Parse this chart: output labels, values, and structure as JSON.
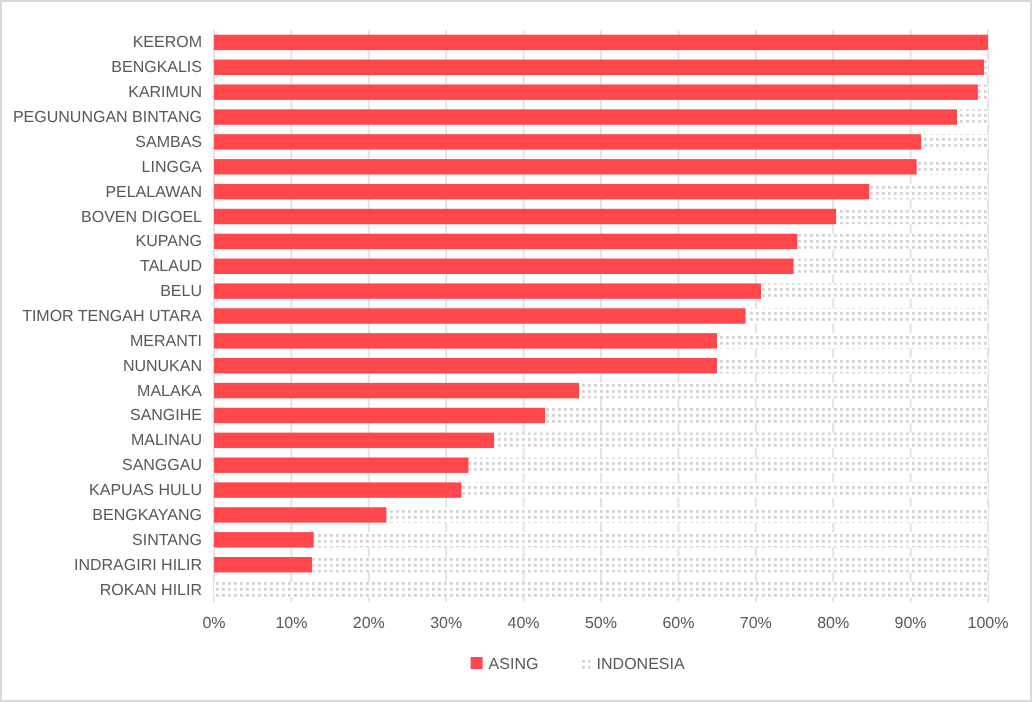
{
  "chart_data": {
    "type": "bar",
    "orientation": "horizontal",
    "stacked": true,
    "categories": [
      "KEEROM",
      "BENGKALIS",
      "KARIMUN",
      "PEGUNUNGAN BINTANG",
      "SAMBAS",
      "LINGGA",
      "PELALAWAN",
      "BOVEN DIGOEL",
      "KUPANG",
      "TALAUD",
      "BELU",
      "TIMOR TENGAH UTARA",
      "MERANTI",
      "NUNUKAN",
      "MALAKA",
      "SANGIHE",
      "MALINAU",
      "SANGGAU",
      "KAPUAS HULU",
      "BENGKAYANG",
      "SINTANG",
      "INDRAGIRI HILIR",
      "ROKAN HILIR"
    ],
    "series": [
      {
        "name": "ASING",
        "color": "#ff474c",
        "values": [
          100,
          99.5,
          98.7,
          96,
          91.4,
          90.8,
          84.7,
          80.4,
          75.4,
          74.9,
          70.7,
          68.7,
          65,
          65,
          47.2,
          42.8,
          36.2,
          32.9,
          32,
          22.3,
          12.9,
          12.7,
          0
        ]
      },
      {
        "name": "INDONESIA",
        "color": "#d4d4d4",
        "values": [
          0,
          0.5,
          1.3,
          4,
          8.6,
          9.2,
          15.3,
          19.6,
          24.6,
          25.1,
          29.3,
          31.3,
          35,
          35,
          52.8,
          57.2,
          63.8,
          67.1,
          68,
          77.7,
          87.1,
          87.3,
          100
        ]
      }
    ],
    "xlim": [
      0,
      100
    ],
    "xticks": [
      {
        "value": 0,
        "label": "0%"
      },
      {
        "value": 10,
        "label": "10%"
      },
      {
        "value": 20,
        "label": "20%"
      },
      {
        "value": 30,
        "label": "30%"
      },
      {
        "value": 40,
        "label": "40%"
      },
      {
        "value": 50,
        "label": "50%"
      },
      {
        "value": 60,
        "label": "60%"
      },
      {
        "value": 70,
        "label": "70%"
      },
      {
        "value": 80,
        "label": "80%"
      },
      {
        "value": 90,
        "label": "90%"
      },
      {
        "value": 100,
        "label": "100%"
      }
    ],
    "grid": "x",
    "legend": "bottom"
  }
}
